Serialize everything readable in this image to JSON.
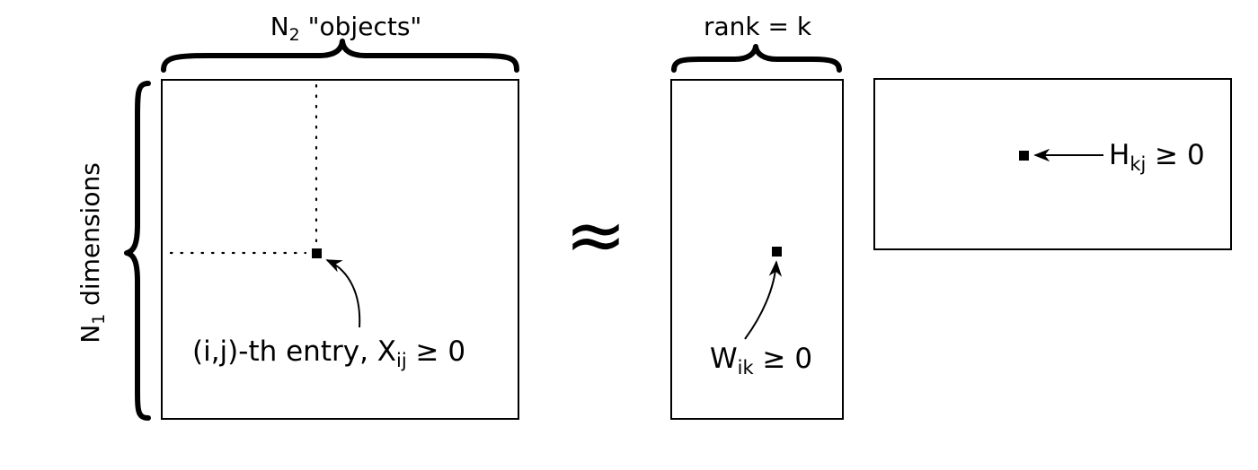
{
  "labels": {
    "n2_main": "N",
    "n2_sub": "2",
    "n2_rest": " \"objects\"",
    "rank": "rank = k",
    "n1_main": "N",
    "n1_sub": "1",
    "n1_rest": " dimensions",
    "approx": "≈",
    "x_entry_prefix": "(i,j)-th entry, X",
    "x_entry_sub": "ij",
    "x_entry_rest": " ≥ 0",
    "w_main": "W",
    "w_sub": "ik",
    "w_rest": " ≥ 0",
    "h_main": "H",
    "h_sub": "kj",
    "h_rest": " ≥ 0"
  }
}
